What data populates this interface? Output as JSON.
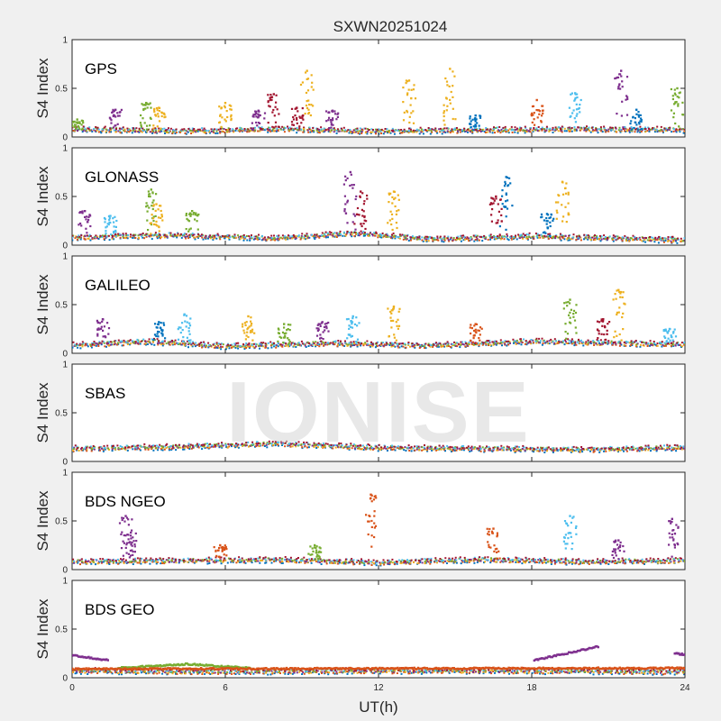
{
  "chart_data": {
    "type": "scatter",
    "title": "SXWN20251024",
    "xlabel": "UT(h)",
    "ylabel": "S4 Index",
    "xlim": [
      0,
      24
    ],
    "ylim": [
      0,
      1
    ],
    "xticks": [
      0,
      6,
      12,
      18,
      24
    ],
    "yticks": [
      0,
      0.5,
      1
    ],
    "ytick_labels": [
      "0",
      "0.5",
      "1"
    ],
    "grid": false,
    "watermark": "IONISE",
    "series_colors": [
      "#0072BD",
      "#D95319",
      "#EDB120",
      "#7E2F8E",
      "#77AC30",
      "#4DBEEE",
      "#A2142F"
    ],
    "panels": [
      {
        "label": "GPS",
        "baseline": [
          [
            0,
            0.08
          ],
          [
            4,
            0.06
          ],
          [
            8,
            0.08
          ],
          [
            12,
            0.06
          ],
          [
            16,
            0.07
          ],
          [
            20,
            0.08
          ],
          [
            24,
            0.07
          ]
        ],
        "spikes": [
          {
            "x": 0.2,
            "peak": 0.18,
            "color": 4
          },
          {
            "x": 1.7,
            "peak": 0.28,
            "color": 3
          },
          {
            "x": 2.9,
            "peak": 0.35,
            "color": 4
          },
          {
            "x": 3.4,
            "peak": 0.3,
            "color": 2
          },
          {
            "x": 6.0,
            "peak": 0.35,
            "color": 2
          },
          {
            "x": 7.3,
            "peak": 0.27,
            "color": 3
          },
          {
            "x": 7.9,
            "peak": 0.44,
            "color": 6
          },
          {
            "x": 8.8,
            "peak": 0.3,
            "color": 6
          },
          {
            "x": 9.2,
            "peak": 0.68,
            "color": 2
          },
          {
            "x": 10.2,
            "peak": 0.27,
            "color": 3
          },
          {
            "x": 13.2,
            "peak": 0.58,
            "color": 2
          },
          {
            "x": 14.8,
            "peak": 0.7,
            "color": 2
          },
          {
            "x": 15.8,
            "peak": 0.22,
            "color": 0
          },
          {
            "x": 18.2,
            "peak": 0.38,
            "color": 1
          },
          {
            "x": 19.7,
            "peak": 0.45,
            "color": 5
          },
          {
            "x": 21.5,
            "peak": 0.68,
            "color": 3
          },
          {
            "x": 22.1,
            "peak": 0.28,
            "color": 0
          },
          {
            "x": 23.7,
            "peak": 0.5,
            "color": 4
          }
        ]
      },
      {
        "label": "GLONASS",
        "baseline": [
          [
            0,
            0.08
          ],
          [
            4,
            0.1
          ],
          [
            8,
            0.07
          ],
          [
            11,
            0.12
          ],
          [
            14,
            0.06
          ],
          [
            18,
            0.09
          ],
          [
            24,
            0.05
          ]
        ],
        "spikes": [
          {
            "x": 0.5,
            "peak": 0.35,
            "color": 3
          },
          {
            "x": 1.5,
            "peak": 0.3,
            "color": 5
          },
          {
            "x": 3.1,
            "peak": 0.57,
            "color": 4
          },
          {
            "x": 3.3,
            "peak": 0.42,
            "color": 2
          },
          {
            "x": 4.7,
            "peak": 0.35,
            "color": 4
          },
          {
            "x": 10.9,
            "peak": 0.75,
            "color": 3
          },
          {
            "x": 11.3,
            "peak": 0.55,
            "color": 6
          },
          {
            "x": 12.6,
            "peak": 0.55,
            "color": 2
          },
          {
            "x": 16.6,
            "peak": 0.5,
            "color": 6
          },
          {
            "x": 17.0,
            "peak": 0.7,
            "color": 0
          },
          {
            "x": 18.6,
            "peak": 0.32,
            "color": 0
          },
          {
            "x": 19.2,
            "peak": 0.65,
            "color": 2
          }
        ]
      },
      {
        "label": "GALILEO",
        "baseline": [
          [
            0,
            0.08
          ],
          [
            3,
            0.12
          ],
          [
            6,
            0.07
          ],
          [
            10,
            0.1
          ],
          [
            14,
            0.08
          ],
          [
            18,
            0.12
          ],
          [
            24,
            0.09
          ]
        ],
        "spikes": [
          {
            "x": 1.2,
            "peak": 0.35,
            "color": 3
          },
          {
            "x": 3.4,
            "peak": 0.32,
            "color": 0
          },
          {
            "x": 4.4,
            "peak": 0.4,
            "color": 5
          },
          {
            "x": 6.9,
            "peak": 0.38,
            "color": 2
          },
          {
            "x": 8.3,
            "peak": 0.3,
            "color": 4
          },
          {
            "x": 9.8,
            "peak": 0.32,
            "color": 3
          },
          {
            "x": 11.0,
            "peak": 0.38,
            "color": 5
          },
          {
            "x": 12.6,
            "peak": 0.48,
            "color": 2
          },
          {
            "x": 15.8,
            "peak": 0.3,
            "color": 1
          },
          {
            "x": 19.5,
            "peak": 0.55,
            "color": 4
          },
          {
            "x": 20.8,
            "peak": 0.35,
            "color": 6
          },
          {
            "x": 21.4,
            "peak": 0.65,
            "color": 2
          },
          {
            "x": 23.4,
            "peak": 0.25,
            "color": 5
          }
        ]
      },
      {
        "label": "SBAS",
        "baseline": [
          [
            0,
            0.13
          ],
          [
            4,
            0.15
          ],
          [
            8,
            0.18
          ],
          [
            12,
            0.14
          ],
          [
            16,
            0.13
          ],
          [
            20,
            0.12
          ],
          [
            24,
            0.14
          ]
        ],
        "spikes": []
      },
      {
        "label": "BDS NGEO",
        "baseline": [
          [
            0,
            0.08
          ],
          [
            4,
            0.09
          ],
          [
            8,
            0.1
          ],
          [
            12,
            0.07
          ],
          [
            16,
            0.1
          ],
          [
            20,
            0.08
          ],
          [
            24,
            0.09
          ]
        ],
        "spikes": [
          {
            "x": 2.1,
            "peak": 0.55,
            "color": 3
          },
          {
            "x": 2.3,
            "peak": 0.38,
            "color": 3
          },
          {
            "x": 5.8,
            "peak": 0.25,
            "color": 1
          },
          {
            "x": 9.5,
            "peak": 0.25,
            "color": 4
          },
          {
            "x": 11.7,
            "peak": 0.77,
            "color": 1
          },
          {
            "x": 16.5,
            "peak": 0.42,
            "color": 1
          },
          {
            "x": 19.5,
            "peak": 0.55,
            "color": 5
          },
          {
            "x": 21.4,
            "peak": 0.3,
            "color": 3
          },
          {
            "x": 23.5,
            "peak": 0.52,
            "color": 3
          }
        ]
      },
      {
        "label": "BDS GEO",
        "baseline": [
          [
            0,
            0.07
          ],
          [
            6,
            0.06
          ],
          [
            12,
            0.07
          ],
          [
            18,
            0.07
          ],
          [
            24,
            0.06
          ]
        ],
        "spikes": [],
        "tracks": [
          {
            "color": 3,
            "points": [
              [
                0,
                0.23
              ],
              [
                1.4,
                0.18
              ]
            ]
          },
          {
            "color": 4,
            "points": [
              [
                1.8,
                0.1
              ],
              [
                4.5,
                0.14
              ],
              [
                7,
                0.1
              ]
            ]
          },
          {
            "color": 1,
            "points": [
              [
                0,
                0.09
              ],
              [
                24,
                0.1
              ]
            ]
          },
          {
            "color": 3,
            "points": [
              [
                18.1,
                0.18
              ],
              [
                20.6,
                0.32
              ]
            ]
          },
          {
            "color": 3,
            "points": [
              [
                23.6,
                0.25
              ],
              [
                24,
                0.24
              ]
            ]
          }
        ]
      }
    ]
  }
}
